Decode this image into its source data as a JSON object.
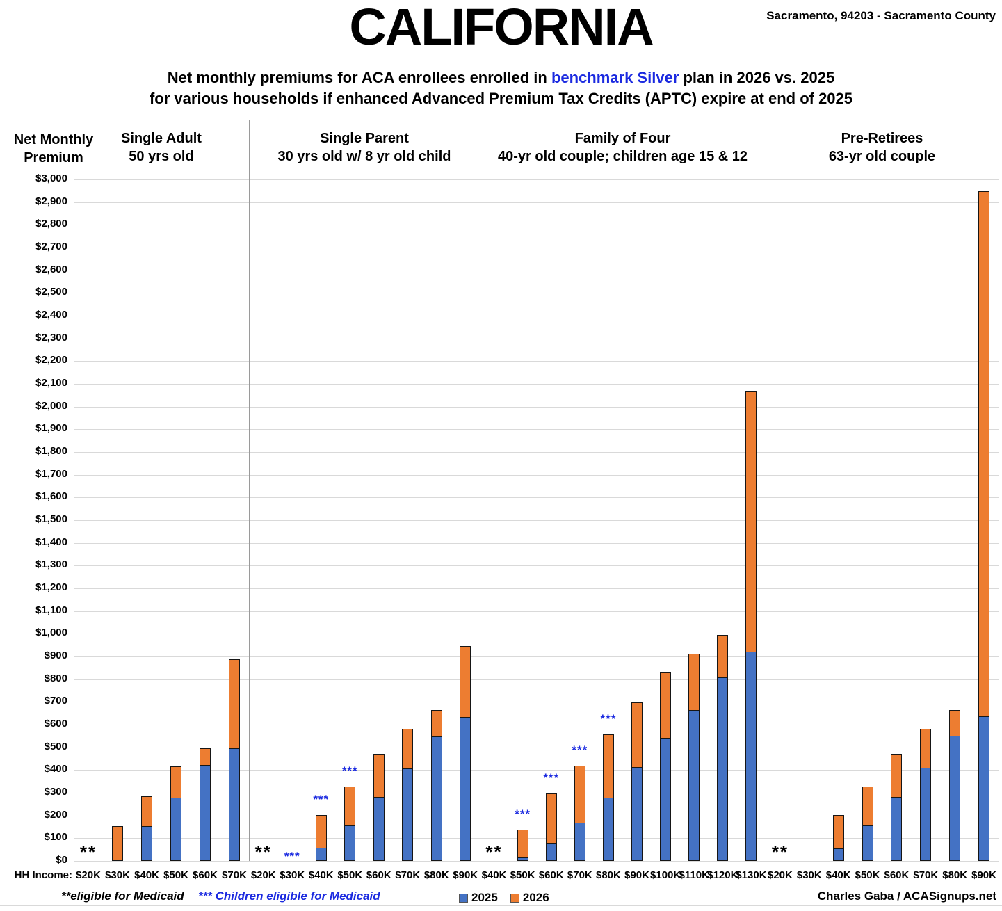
{
  "header": {
    "title": "CALIFORNIA",
    "location": "Sacramento, 94203 - Sacramento County",
    "subtitle_pre": "Net monthly premiums for ACA enrollees enrolled in ",
    "subtitle_highlight": "benchmark Silver",
    "subtitle_post": " plan in 2026 vs. 2025",
    "subtitle_line2": "for various households if enhanced Advanced Premium Tax Credits (APTC) expire at end of 2025"
  },
  "axis": {
    "y_title_line1": "Net Monthly",
    "y_title_line2": "Premium",
    "hh_income_label": "HH Income:",
    "y_ticks": [
      "$0",
      "$100",
      "$200",
      "$300",
      "$400",
      "$500",
      "$600",
      "$700",
      "$800",
      "$900",
      "$1,000",
      "$1,100",
      "$1,200",
      "$1,300",
      "$1,400",
      "$1,500",
      "$1,600",
      "$1,700",
      "$1,800",
      "$1,900",
      "$2,000",
      "$2,100",
      "$2,200",
      "$2,300",
      "$2,400",
      "$2,500",
      "$2,600",
      "$2,700",
      "$2,800",
      "$2,900",
      "$3,000"
    ]
  },
  "legend": {
    "items": [
      {
        "label": "2025",
        "color": "#4472C4"
      },
      {
        "label": "2026",
        "color": "#ED7D31"
      }
    ]
  },
  "footer": {
    "footnote_medicaid": "**eligible for Medicaid",
    "footnote_children": "*** Children eligible for Medicaid",
    "credit": "Charles Gaba / ACASignups.net"
  },
  "chart_data": {
    "type": "bar",
    "stacked": true,
    "ylim": [
      0,
      3000
    ],
    "ystep": 100,
    "grid": true,
    "legend_position": "bottom",
    "series_names": [
      "2025",
      "2026"
    ],
    "colors": {
      "2025": "#4472C4",
      "2026": "#ED7D31",
      "marker_blue": "#1b2ae0"
    },
    "marker_meanings": {
      "**": "eligible for Medicaid",
      "***": "Children eligible for Medicaid"
    },
    "groups": [
      {
        "title": "Single Adult",
        "subtitle": "50 yrs old",
        "bars": [
          {
            "income": "$20K",
            "marker": "**"
          },
          {
            "income": "$30K",
            "v2025": 0,
            "v2026": 152
          },
          {
            "income": "$40K",
            "v2025": 152,
            "v2026": 285
          },
          {
            "income": "$50K",
            "v2025": 280,
            "v2026": 415
          },
          {
            "income": "$60K",
            "v2025": 422,
            "v2026": 497
          },
          {
            "income": "$70K",
            "v2025": 495,
            "v2026": 889
          }
        ]
      },
      {
        "title": "Single Parent",
        "subtitle": "30 yrs old w/ 8 yr old child",
        "bars": [
          {
            "income": "$20K",
            "marker": "**"
          },
          {
            "income": "$30K",
            "marker": "***"
          },
          {
            "income": "$40K",
            "marker": "***",
            "v2025": 58,
            "v2026": 202
          },
          {
            "income": "$50K",
            "marker": "***",
            "v2025": 157,
            "v2026": 329
          },
          {
            "income": "$60K",
            "v2025": 283,
            "v2026": 472
          },
          {
            "income": "$70K",
            "v2025": 407,
            "v2026": 583
          },
          {
            "income": "$80K",
            "v2025": 549,
            "v2026": 664
          },
          {
            "income": "$90K",
            "v2025": 634,
            "v2026": 945
          }
        ]
      },
      {
        "title": "Family of Four",
        "subtitle": "40-yr old couple; children age 15 & 12",
        "bars": [
          {
            "income": "$40K",
            "marker": "**"
          },
          {
            "income": "$50K",
            "marker": "***",
            "v2025": 16,
            "v2026": 139
          },
          {
            "income": "$60K",
            "marker": "***",
            "v2025": 80,
            "v2026": 296
          },
          {
            "income": "$70K",
            "marker": "***",
            "v2025": 169,
            "v2026": 419
          },
          {
            "income": "$80K",
            "marker": "***",
            "v2025": 280,
            "v2026": 557
          },
          {
            "income": "$90K",
            "v2025": 412,
            "v2026": 698
          },
          {
            "income": "$100K",
            "v2025": 541,
            "v2026": 829
          },
          {
            "income": "$110K",
            "v2025": 664,
            "v2026": 911
          },
          {
            "income": "$120K",
            "v2025": 807,
            "v2026": 995
          },
          {
            "income": "$130K",
            "v2025": 920,
            "v2026": 2069
          }
        ]
      },
      {
        "title": "Pre-Retirees",
        "subtitle": "63-yr old couple",
        "bars": [
          {
            "income": "$20K",
            "marker": "**"
          },
          {
            "income": "$30K"
          },
          {
            "income": "$40K",
            "v2025": 55,
            "v2026": 202
          },
          {
            "income": "$50K",
            "v2025": 156,
            "v2026": 328
          },
          {
            "income": "$60K",
            "v2025": 282,
            "v2026": 470
          },
          {
            "income": "$70K",
            "v2025": 409,
            "v2026": 582
          },
          {
            "income": "$80K",
            "v2025": 551,
            "v2026": 664
          },
          {
            "income": "$90K",
            "v2025": 637,
            "v2026": 2947
          }
        ]
      }
    ]
  }
}
